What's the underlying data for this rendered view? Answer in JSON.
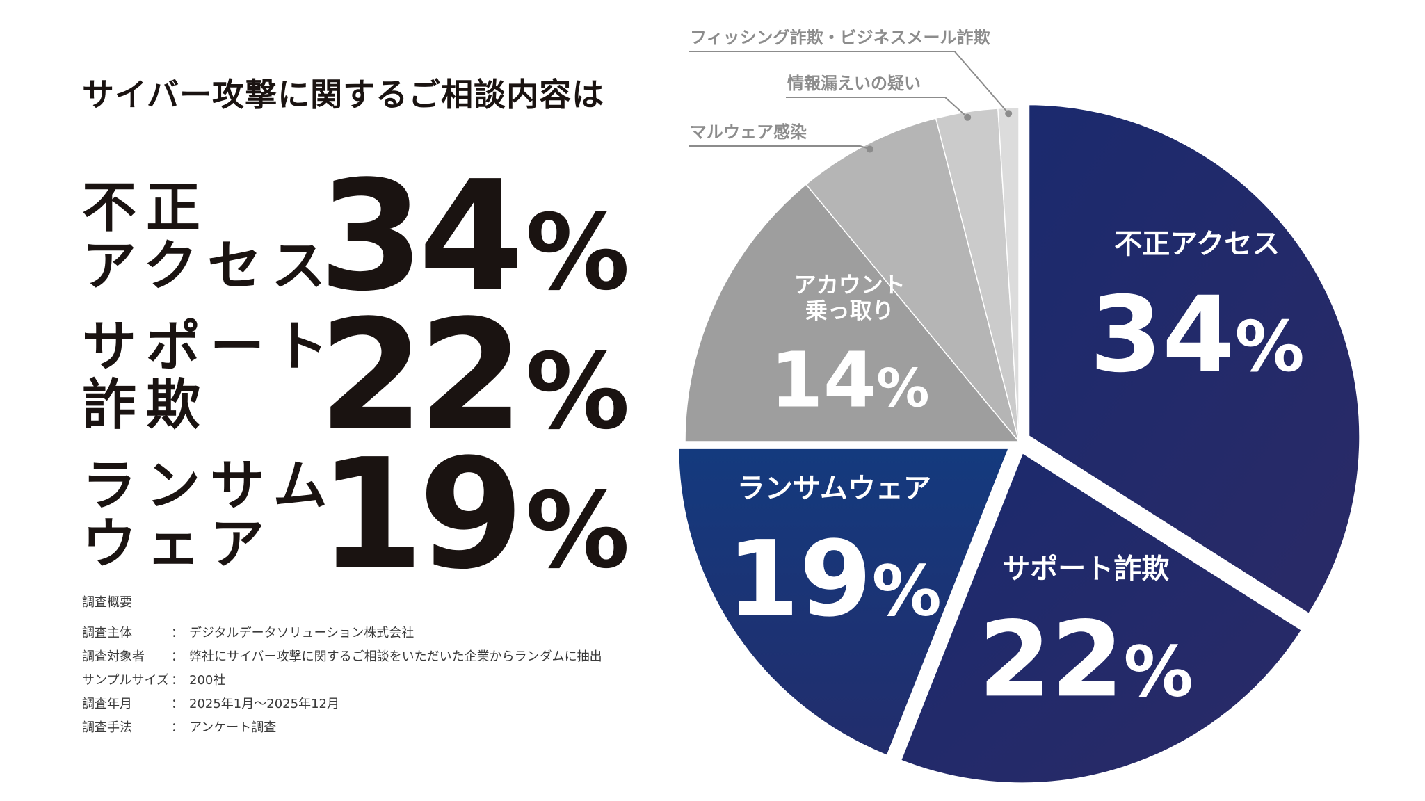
{
  "title": "サイバー攻撃に関するご相談内容は",
  "highlights": [
    {
      "label_line1": "不正",
      "label_line2": "アクセス",
      "value": "34",
      "unit": "%"
    },
    {
      "label_line1": "サポート",
      "label_line2": "詐欺",
      "value": "22",
      "unit": "%"
    },
    {
      "label_line1": "ランサム",
      "label_line2": "ウェア",
      "value": "19",
      "unit": "%"
    }
  ],
  "survey": {
    "heading": "調査概要",
    "colon": "：",
    "rows": [
      {
        "key": "調査主体",
        "value": "デジタルデータソリューション株式会社"
      },
      {
        "key": "調査対象者",
        "value": "弊社にサイバー攻撃に関するご相談をいただいた企業からランダムに抽出"
      },
      {
        "key": "サンプルサイズ",
        "value": "200社"
      },
      {
        "key": "調査年月",
        "value": "2025年1月～2025年12月"
      },
      {
        "key": "調査手法",
        "value": "アンケート調査"
      }
    ]
  },
  "chart_data": {
    "type": "pie",
    "title": "",
    "unit": "%",
    "start": "12 o'clock",
    "direction": "clockwise",
    "slices": [
      {
        "name": "不正アクセス",
        "value": 34,
        "label": "34",
        "color": "#222b6a",
        "line1": "不正アクセス",
        "line2": ""
      },
      {
        "name": "サポート詐欺",
        "value": 22,
        "label": "22",
        "color": "#222b6a",
        "line1": "サポート詐欺",
        "line2": ""
      },
      {
        "name": "ランサムウェア",
        "value": 19,
        "label": "19",
        "color": "#1b3374",
        "line1": "ランサムウェア",
        "line2": ""
      },
      {
        "name": "アカウント乗っ取り",
        "value": 14,
        "label": "14",
        "color": "#9e9e9e",
        "line1": "アカウント",
        "line2": "乗っ取り"
      },
      {
        "name": "マルウェア感染",
        "value": 7,
        "color": "#b5b5b5",
        "callout": "マルウェア感染"
      },
      {
        "name": "情報漏えいの疑い",
        "value": 3,
        "color": "#cbcbcb",
        "callout": "情報漏えいの疑い"
      },
      {
        "name": "フィッシング詐欺・ビジネスメール詐欺",
        "value": 1,
        "color": "#dcdcdc",
        "callout": "フィッシング詐欺・ビジネスメール詐欺"
      }
    ]
  }
}
